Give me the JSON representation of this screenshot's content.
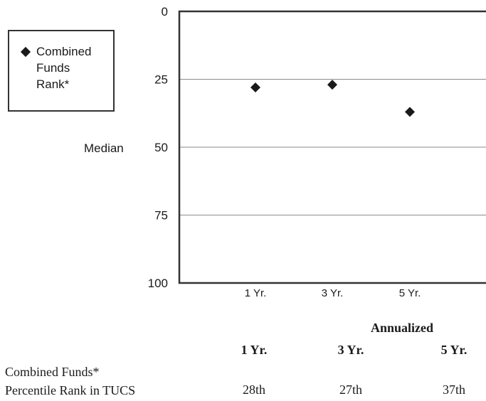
{
  "chart_data": {
    "type": "scatter",
    "categories": [
      "1 Yr.",
      "3 Yr.",
      "5 Yr."
    ],
    "series": [
      {
        "name": "Combined Funds Rank*",
        "values": [
          28,
          27,
          37
        ],
        "marker": "diamond",
        "color": "#1a1a1a"
      }
    ],
    "y_ticks": [
      0,
      25,
      50,
      75,
      100
    ],
    "ylim": [
      0,
      100
    ],
    "y_inverted": true,
    "ylabel": "Median",
    "grid": true,
    "legend_position": "left",
    "legend_lines": [
      "Combined",
      "Funds",
      "Rank*"
    ]
  },
  "table": {
    "group_heading": "Annualized",
    "columns": [
      "1 Yr.",
      "3 Yr.",
      "5 Yr."
    ],
    "row_label_line1": "Combined Funds*",
    "row_label_line2": "Percentile Rank in TUCS",
    "values": [
      "28th",
      "27th",
      "37th"
    ]
  }
}
